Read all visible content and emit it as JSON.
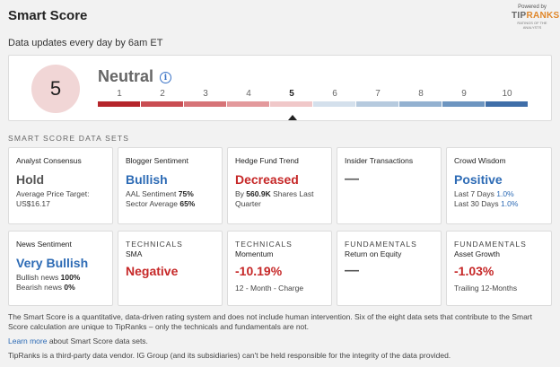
{
  "header": {
    "title": "Smart Score",
    "powered_by": "Powered by",
    "logo_tip": "TIP",
    "logo_ranks": "RANKS",
    "logo_tag": "RATINGS OF THE ANALYSTS"
  },
  "updates_text": "Data updates every day by 6am ET",
  "score": {
    "value": "5",
    "label": "Neutral",
    "info_icon": "info-icon",
    "scale": [
      "1",
      "2",
      "3",
      "4",
      "5",
      "6",
      "7",
      "8",
      "9",
      "10"
    ],
    "selected_index": 4,
    "colors": [
      "#b5252b",
      "#c94d52",
      "#d67377",
      "#e3999c",
      "#f0c8c9",
      "#d4e0ec",
      "#b6cade",
      "#93b1d0",
      "#6d95c0",
      "#3f6ea8"
    ]
  },
  "section_title": "SMART SCORE DATA SETS",
  "cards": {
    "analyst": {
      "title": "Analyst Consensus",
      "value": "Hold",
      "line1": "Average Price Target:",
      "line2": "US$16.17"
    },
    "blogger": {
      "title": "Blogger Sentiment",
      "value": "Bullish",
      "l1_label": "AAL Sentiment",
      "l1_val": "75%",
      "l2_label": "Sector Average",
      "l2_val": "65%"
    },
    "hedge": {
      "title": "Hedge Fund Trend",
      "value": "Decreased",
      "l1_pre": "By",
      "l1_val": "560.9K",
      "l1_post": "Shares Last",
      "l2": "Quarter"
    },
    "insider": {
      "title": "Insider Transactions",
      "value": "—"
    },
    "crowd": {
      "title": "Crowd Wisdom",
      "value": "Positive",
      "l1_label": "Last 7 Days",
      "l1_val": "1.0%",
      "l2_label": "Last 30 Days",
      "l2_val": "1.0%"
    },
    "news": {
      "title": "News Sentiment",
      "value": "Very Bullish",
      "l1_label": "Bullish news",
      "l1_val": "100%",
      "l2_label": "Bearish news",
      "l2_val": "0%"
    },
    "sma": {
      "cat": "TECHNICALS",
      "title": "SMA",
      "value": "Negative"
    },
    "momentum": {
      "cat": "TECHNICALS",
      "title": "Momentum",
      "value": "-10.19%",
      "sub": "12 - Month - Charge"
    },
    "roe": {
      "cat": "FUNDAMENTALS",
      "title": "Return on Equity",
      "value": "—"
    },
    "growth": {
      "cat": "FUNDAMENTALS",
      "title": "Asset Growth",
      "value": "-1.03%",
      "sub": "Trailing 12-Months"
    }
  },
  "description": "The Smart Score is a quantitative, data-driven rating system and does not include human intervention. Six of the eight data sets that contribute to the Smart Score calculation are unique to TipRanks – only the technicals and fundamentals are not.",
  "learn": {
    "link": "Learn more",
    "rest": " about Smart Score data sets."
  },
  "disclaimer": "TipRanks is a third-party data vendor. IG Group (and its subsidiaries) can't be held responsible for the integrity of the data provided."
}
